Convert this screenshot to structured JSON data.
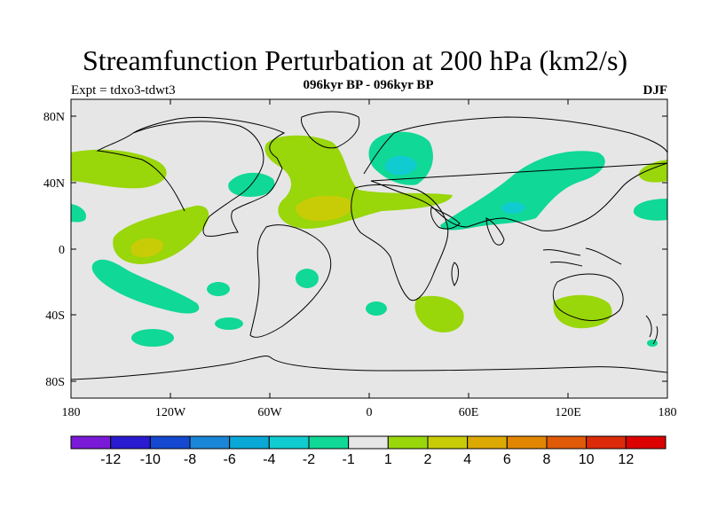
{
  "figure": {
    "title": "Streamfunction Perturbation at 200 hPa (km2/s)",
    "subtitle": "096kyr BP - 096kyr BP",
    "left_label": "Expt = tdxo3-tdwt3",
    "right_label": "DJF"
  },
  "axes": {
    "lon_ticks": [
      "180",
      "120W",
      "60W",
      "0",
      "60E",
      "120E",
      "180"
    ],
    "lat_ticks": [
      "80N",
      "40N",
      "0",
      "40S",
      "80S"
    ]
  },
  "colorbar": {
    "labels": [
      "-12",
      "-10",
      "-8",
      "-6",
      "-4",
      "-2",
      "-1",
      "1",
      "2",
      "4",
      "6",
      "8",
      "10",
      "12"
    ],
    "colors": [
      "#7a1ad8",
      "#2a1ad0",
      "#1448d0",
      "#1a86d8",
      "#0aa8d6",
      "#10ccd0",
      "#10d896",
      "#e6e6e6",
      "#99d60a",
      "#c8cc06",
      "#dca802",
      "#e28602",
      "#e05a08",
      "#dc2a0a",
      "#dc0202"
    ]
  },
  "colors": {
    "ocean_background": "#e6e6e6",
    "coast": "#000000"
  }
}
